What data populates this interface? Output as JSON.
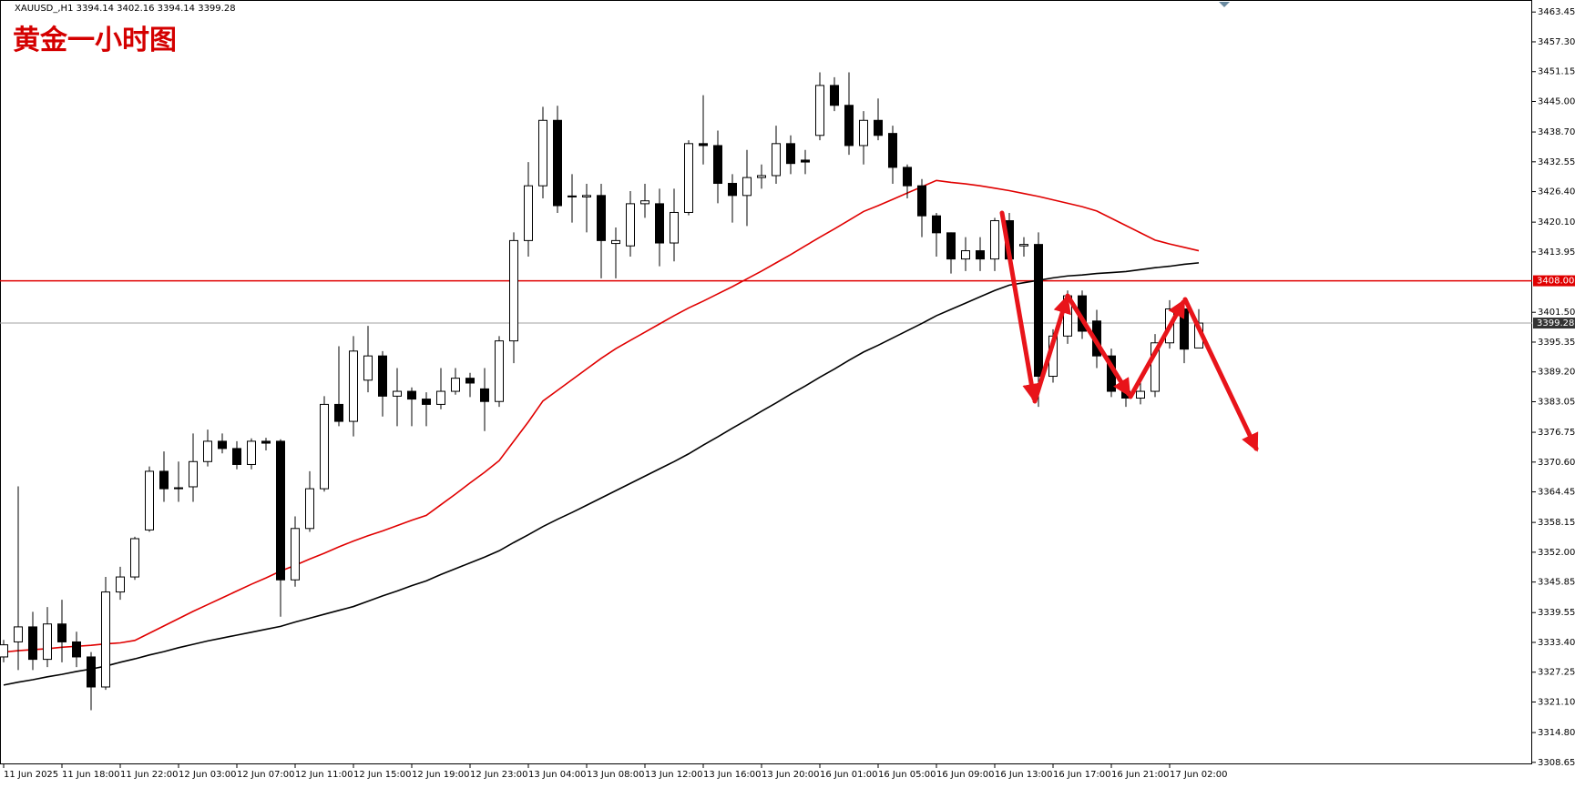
{
  "chart_data": {
    "type": "candlestick",
    "title": "黄金一小时图",
    "header": "XAUUSD_,H1  3394.14 3402.16 3394.14 3399.28",
    "categories": [
      "11 Jun 2025",
      null,
      null,
      null,
      "11 Jun 18:00",
      null,
      null,
      null,
      "11 Jun 22:00",
      null,
      null,
      null,
      "12 Jun 03:00",
      null,
      null,
      null,
      "12 Jun 07:00",
      null,
      null,
      null,
      "12 Jun 11:00",
      null,
      null,
      null,
      "12 Jun 15:00",
      null,
      null,
      null,
      "12 Jun 19:00",
      null,
      null,
      null,
      "12 Jun 23:00",
      null,
      null,
      null,
      "13 Jun 04:00",
      null,
      null,
      null,
      "13 Jun 08:00",
      null,
      null,
      null,
      "13 Jun 12:00",
      null,
      null,
      null,
      "13 Jun 16:00",
      null,
      null,
      null,
      "13 Jun 20:00",
      null,
      null,
      null,
      "16 Jun 01:00",
      null,
      null,
      null,
      "16 Jun 05:00",
      null,
      null,
      null,
      "16 Jun 09:00",
      null,
      null,
      null,
      "16 Jun 13:00",
      null,
      null,
      null,
      "16 Jun 17:00",
      null,
      null,
      null,
      "16 Jun 21:00",
      null,
      null,
      null,
      "17 Jun 02:00",
      null,
      null
    ],
    "open": [
      3330.4,
      3333.5,
      3336.6,
      3329.9,
      3337.2,
      3333.5,
      3330.4,
      3324.2,
      3343.8,
      3346.9,
      3356.6,
      3368.7,
      3365.3,
      3365.5,
      3370.7,
      3374.9,
      3373.4,
      3370.1,
      3374.9,
      3374.9,
      3346.3,
      3356.9,
      3365.1,
      3382.5,
      3379.0,
      3387.5,
      3392.5,
      3384.2,
      3385.2,
      3383.6,
      3382.5,
      3385.2,
      3387.9,
      3385.7,
      3383.1,
      3395.6,
      3416.3,
      3427.6,
      3441.1,
      3425.5,
      3425.3,
      3425.6,
      3415.7,
      3415.2,
      3423.9,
      3423.9,
      3415.8,
      3422.1,
      3436.3,
      3435.9,
      3428.1,
      3425.6,
      3429.3,
      3429.7,
      3436.3,
      3432.9,
      3438.0,
      3448.3,
      3444.2,
      3435.9,
      3441.1,
      3438.4,
      3431.4,
      3427.6,
      3421.4,
      3417.9,
      3412.5,
      3414.2,
      3412.5,
      3420.4,
      3415.2,
      3415.5,
      3388.3,
      3396.6,
      3404.9,
      3399.7,
      3392.5,
      3385.2,
      3383.8,
      3385.2,
      3395.2,
      3402.2,
      3394.14
    ],
    "high": [
      3333.9,
      3365.6,
      3339.7,
      3340.7,
      3342.2,
      3335.6,
      3331.4,
      3346.9,
      3349.0,
      3355.2,
      3369.7,
      3372.8,
      3370.7,
      3376.5,
      3377.3,
      3376.5,
      3374.9,
      3375.5,
      3375.6,
      3375.3,
      3359.4,
      3368.7,
      3384.2,
      3394.5,
      3396.6,
      3398.7,
      3393.5,
      3390.0,
      3386.0,
      3385.0,
      3390.0,
      3390.0,
      3389.0,
      3390.0,
      3396.6,
      3418.0,
      3432.5,
      3443.9,
      3444.1,
      3430.0,
      3428.0,
      3428.0,
      3419.0,
      3426.5,
      3428.0,
      3427.0,
      3427.0,
      3437.0,
      3446.3,
      3439.0,
      3430.0,
      3435.0,
      3432.0,
      3440.0,
      3438.0,
      3435.0,
      3451.0,
      3450.0,
      3451.0,
      3443.0,
      3445.6,
      3440.0,
      3432.0,
      3429.0,
      3422.0,
      3418.0,
      3417.0,
      3417.0,
      3421.0,
      3422.0,
      3417.0,
      3418.0,
      3398.0,
      3406.0,
      3406.0,
      3402.0,
      3394.0,
      3387.0,
      3387.0,
      3397.0,
      3404.0,
      3404.0,
      3402.16
    ],
    "low": [
      3329.3,
      3327.7,
      3327.7,
      3328.3,
      3329.3,
      3328.3,
      3319.4,
      3323.6,
      3342.2,
      3346.3,
      3356.2,
      3362.4,
      3362.4,
      3362.4,
      3369.7,
      3372.4,
      3369.1,
      3369.1,
      3373.0,
      3338.7,
      3344.9,
      3356.2,
      3364.5,
      3378.0,
      3375.9,
      3385.0,
      3380.0,
      3378.0,
      3378.0,
      3378.0,
      3381.5,
      3384.5,
      3384.0,
      3377.0,
      3382.0,
      3391.0,
      3413.0,
      3425.0,
      3422.0,
      3420.0,
      3418.0,
      3408.5,
      3408.5,
      3413.0,
      3421.0,
      3411.0,
      3412.0,
      3421.5,
      3432.0,
      3424.0,
      3420.0,
      3419.3,
      3427.0,
      3428.0,
      3430.0,
      3430.0,
      3437.0,
      3443.0,
      3434.0,
      3432.0,
      3437.0,
      3428.0,
      3425.0,
      3417.0,
      3413.0,
      3409.5,
      3410.0,
      3410.0,
      3410.0,
      3411.0,
      3413.0,
      3382.0,
      3387.0,
      3395.0,
      3396.0,
      3390.0,
      3384.0,
      3382.0,
      3382.5,
      3384.0,
      3394.0,
      3391.0,
      3394.14
    ],
    "close": [
      3332.9,
      3336.6,
      3329.9,
      3337.2,
      3333.5,
      3330.4,
      3324.2,
      3343.8,
      3346.9,
      3354.8,
      3368.7,
      3365.1,
      3365.1,
      3370.7,
      3374.9,
      3373.4,
      3370.1,
      3374.9,
      3374.5,
      3346.3,
      3356.9,
      3365.1,
      3382.5,
      3379.0,
      3393.5,
      3392.5,
      3384.2,
      3385.2,
      3383.6,
      3382.5,
      3385.2,
      3387.9,
      3386.9,
      3383.1,
      3395.6,
      3416.3,
      3427.6,
      3441.1,
      3423.5,
      3425.3,
      3425.6,
      3416.3,
      3416.3,
      3423.9,
      3424.5,
      3415.8,
      3422.1,
      3436.3,
      3435.9,
      3428.1,
      3425.6,
      3429.3,
      3429.7,
      3436.3,
      3432.2,
      3432.5,
      3448.3,
      3444.2,
      3435.9,
      3441.1,
      3438.0,
      3431.4,
      3427.6,
      3421.4,
      3417.9,
      3412.5,
      3414.2,
      3412.5,
      3420.4,
      3412.5,
      3415.5,
      3388.3,
      3396.6,
      3404.9,
      3397.6,
      3392.5,
      3385.2,
      3383.8,
      3385.2,
      3395.2,
      3402.2,
      3393.9,
      3399.28
    ],
    "overlays": [
      {
        "color": "#e00000",
        "values": [
          3331.4,
          3331.7,
          3331.9,
          3332.1,
          3332.4,
          3332.6,
          3332.8,
          3333.1,
          3333.3,
          3333.8,
          3335.3,
          3336.8,
          3338.3,
          3339.8,
          3341.2,
          3342.6,
          3344.0,
          3345.4,
          3346.7,
          3348.1,
          3349.3,
          3350.6,
          3351.8,
          3353.1,
          3354.3,
          3355.4,
          3356.4,
          3357.5,
          3358.6,
          3359.6,
          3361.8,
          3364.0,
          3366.3,
          3368.5,
          3370.9,
          3374.9,
          3378.9,
          3383.2,
          3385.4,
          3387.6,
          3389.8,
          3392.0,
          3394.0,
          3395.7,
          3397.4,
          3399.1,
          3400.8,
          3402.4,
          3403.8,
          3405.3,
          3406.8,
          3408.4,
          3410.0,
          3411.7,
          3413.4,
          3415.2,
          3417.0,
          3418.7,
          3420.5,
          3422.3,
          3423.5,
          3424.8,
          3426.1,
          3427.4,
          3428.7,
          3428.3,
          3428.0,
          3427.6,
          3427.1,
          3426.6,
          3426.0,
          3425.4,
          3424.7,
          3424.0,
          3423.3,
          3422.4,
          3420.9,
          3419.4,
          3417.9,
          3416.4,
          3415.6,
          3414.9,
          3414.2
        ]
      },
      {
        "color": "#000000",
        "values": [
          3324.6,
          3325.2,
          3325.7,
          3326.3,
          3326.8,
          3327.4,
          3327.9,
          3328.5,
          3329.3,
          3330.0,
          3330.8,
          3331.5,
          3332.3,
          3333.0,
          3333.7,
          3334.3,
          3334.9,
          3335.5,
          3336.1,
          3336.7,
          3337.6,
          3338.4,
          3339.2,
          3340.0,
          3340.8,
          3341.9,
          3343.0,
          3344.0,
          3345.1,
          3346.1,
          3347.4,
          3348.6,
          3349.8,
          3351.0,
          3352.3,
          3354.0,
          3355.6,
          3357.3,
          3358.8,
          3360.2,
          3361.7,
          3363.2,
          3364.7,
          3366.2,
          3367.7,
          3369.2,
          3370.7,
          3372.3,
          3374.1,
          3375.8,
          3377.6,
          3379.3,
          3381.1,
          3382.8,
          3384.6,
          3386.3,
          3388.1,
          3389.8,
          3391.6,
          3393.3,
          3394.7,
          3396.2,
          3397.7,
          3399.2,
          3400.8,
          3402.1,
          3403.4,
          3404.7,
          3406.0,
          3407.1,
          3407.6,
          3408.1,
          3408.6,
          3409.0,
          3409.2,
          3409.5,
          3409.7,
          3409.9,
          3410.3,
          3410.7,
          3411.0,
          3411.4,
          3411.7
        ]
      }
    ],
    "hlines": [
      {
        "value": 3408,
        "label": "3408.00",
        "color": "#e00000"
      },
      {
        "value": 3399.28,
        "color": "#a0a0a0"
      }
    ],
    "ylim": [
      3308.24,
      3465.93
    ],
    "yticks": [
      3463.45,
      {
        "value": 3457.3,
        "label": "3457.30"
      },
      3451.15,
      {
        "value": 3445,
        "label": "3445.00"
      },
      {
        "value": 3438.7,
        "label": "3438.70"
      },
      3432.55,
      {
        "value": 3426.4,
        "label": "3426.40"
      },
      {
        "value": 3420.1,
        "label": "3420.10"
      },
      3413.95,
      {
        "value": 3401.5,
        "label": "3401.50"
      },
      3395.35,
      {
        "value": 3389.2,
        "label": "3389.20"
      },
      3383.05,
      3376.75,
      {
        "value": 3370.6,
        "label": "3370.60"
      },
      3364.45,
      3358.15,
      {
        "value": 3352,
        "label": "3352.00"
      },
      3345.85,
      3339.55,
      {
        "value": 3333.4,
        "label": "3333.40"
      },
      3327.25,
      {
        "value": 3321.1,
        "label": "3321.10"
      },
      {
        "value": 3314.8,
        "label": "3314.80"
      },
      3308.65
    ],
    "grid": false
  }
}
